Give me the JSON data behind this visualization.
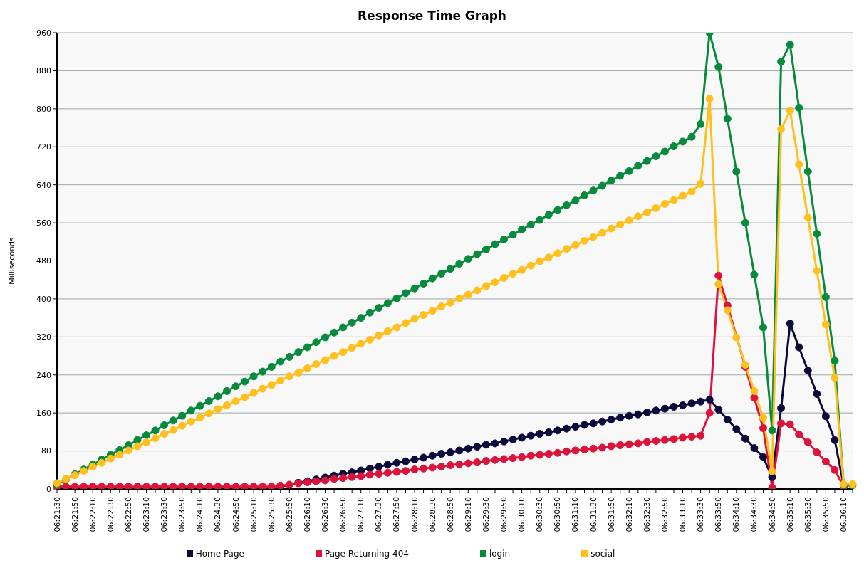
{
  "chart_data": {
    "type": "line",
    "title": "Response Time Graph",
    "ylabel": "Milliseconds",
    "categories": [
      "06:21:30",
      null,
      "06:21:50",
      null,
      "06:22:10",
      null,
      "06:22:30",
      null,
      "06:22:50",
      null,
      "06:23:10",
      null,
      "06:23:30",
      null,
      "06:23:50",
      null,
      "06:24:10",
      null,
      "06:24:30",
      null,
      "06:24:50",
      null,
      "06:25:10",
      null,
      "06:25:30",
      null,
      "06:25:50",
      null,
      "06:26:10",
      null,
      "06:26:30",
      null,
      "06:26:50",
      null,
      "06:27:10",
      null,
      "06:27:30",
      null,
      "06:27:50",
      null,
      "06:28:10",
      null,
      "06:28:30",
      null,
      "06:28:50",
      null,
      "06:29:10",
      null,
      "06:29:30",
      null,
      "06:29:50",
      null,
      "06:30:10",
      null,
      "06:30:30",
      null,
      "06:30:50",
      null,
      "06:31:10",
      null,
      "06:31:30",
      null,
      "06:31:50",
      null,
      "06:32:10",
      null,
      "06:32:30",
      null,
      "06:32:50",
      null,
      "06:33:10",
      null,
      "06:33:30",
      null,
      "06:33:50",
      null,
      "06:34:10",
      null,
      "06:34:30",
      null,
      "06:34:50",
      null,
      "06:35:10",
      null,
      "06:35:30",
      null,
      "06:35:50",
      null,
      "06:36:10",
      null
    ],
    "series": [
      {
        "name": "Home Page",
        "color": "#0b0b3b",
        "values": [
          null,
          null,
          null,
          null,
          null,
          null,
          null,
          null,
          null,
          null,
          null,
          null,
          null,
          null,
          null,
          null,
          null,
          null,
          null,
          null,
          null,
          null,
          null,
          null,
          null,
          5,
          null,
          13,
          16,
          20,
          24,
          28,
          32,
          35,
          39,
          43,
          47,
          51,
          55,
          58,
          62,
          66,
          70,
          74,
          77,
          81,
          85,
          89,
          93,
          96,
          100,
          104,
          108,
          112,
          116,
          119,
          123,
          127,
          131,
          135,
          138,
          142,
          146,
          150,
          154,
          157,
          161,
          165,
          169,
          173,
          176,
          180,
          184,
          188,
          167,
          146,
          126,
          106,
          86,
          67,
          25,
          170,
          348,
          298,
          249,
          200,
          153,
          103,
          8,
          null
        ]
      },
      {
        "name": "Page Returning 404",
        "color": "#dc143c",
        "values": [
          5,
          5,
          5,
          5,
          5,
          5,
          5,
          5,
          5,
          5,
          5,
          5,
          5,
          5,
          5,
          5,
          5,
          5,
          5,
          5,
          5,
          5,
          5,
          5,
          5,
          7,
          9,
          12,
          14,
          16,
          18,
          21,
          23,
          25,
          27,
          30,
          32,
          34,
          36,
          38,
          41,
          43,
          45,
          47,
          50,
          52,
          54,
          56,
          59,
          61,
          63,
          65,
          67,
          70,
          72,
          74,
          76,
          79,
          81,
          83,
          85,
          87,
          90,
          92,
          94,
          96,
          99,
          101,
          103,
          105,
          108,
          110,
          112,
          160,
          449,
          386,
          null,
          257,
          192,
          128,
          3,
          138,
          136,
          115,
          98,
          77,
          58,
          40,
          5,
          null
        ]
      },
      {
        "name": "login",
        "color": "#078a3c",
        "values": [
          10,
          20,
          31,
          41,
          51,
          62,
          72,
          82,
          92,
          103,
          113,
          123,
          134,
          144,
          154,
          165,
          175,
          185,
          195,
          206,
          216,
          226,
          237,
          247,
          257,
          268,
          278,
          288,
          298,
          309,
          319,
          329,
          340,
          350,
          360,
          371,
          381,
          391,
          401,
          412,
          422,
          432,
          443,
          453,
          463,
          474,
          484,
          494,
          504,
          515,
          525,
          535,
          546,
          556,
          566,
          577,
          587,
          597,
          607,
          618,
          628,
          638,
          649,
          659,
          669,
          680,
          690,
          700,
          710,
          721,
          731,
          741,
          768,
          960,
          888,
          779,
          668,
          560,
          451,
          340,
          123,
          899,
          935,
          802,
          668,
          537,
          404,
          270,
          8,
          8
        ]
      },
      {
        "name": "social",
        "color": "#ffc01e",
        "values": [
          12,
          21,
          29,
          38,
          47,
          55,
          64,
          72,
          81,
          90,
          98,
          107,
          116,
          124,
          133,
          142,
          150,
          159,
          168,
          176,
          185,
          193,
          202,
          211,
          219,
          228,
          237,
          245,
          254,
          263,
          271,
          280,
          288,
          297,
          306,
          314,
          323,
          332,
          340,
          349,
          358,
          366,
          375,
          384,
          392,
          401,
          409,
          418,
          427,
          435,
          444,
          453,
          461,
          470,
          479,
          487,
          496,
          505,
          513,
          522,
          530,
          539,
          548,
          556,
          565,
          574,
          582,
          591,
          600,
          608,
          617,
          626,
          642,
          821,
          431,
          376,
          319,
          261,
          206,
          150,
          37,
          757,
          796,
          683,
          571,
          459,
          346,
          234,
          10,
          10
        ]
      }
    ],
    "ylim": [
      0,
      960
    ],
    "yticks": [
      0,
      80,
      160,
      240,
      320,
      400,
      480,
      560,
      640,
      720,
      800,
      880,
      960
    ],
    "grid": "y",
    "legend": "bottom",
    "marker": "circle",
    "line_style": "solid"
  }
}
